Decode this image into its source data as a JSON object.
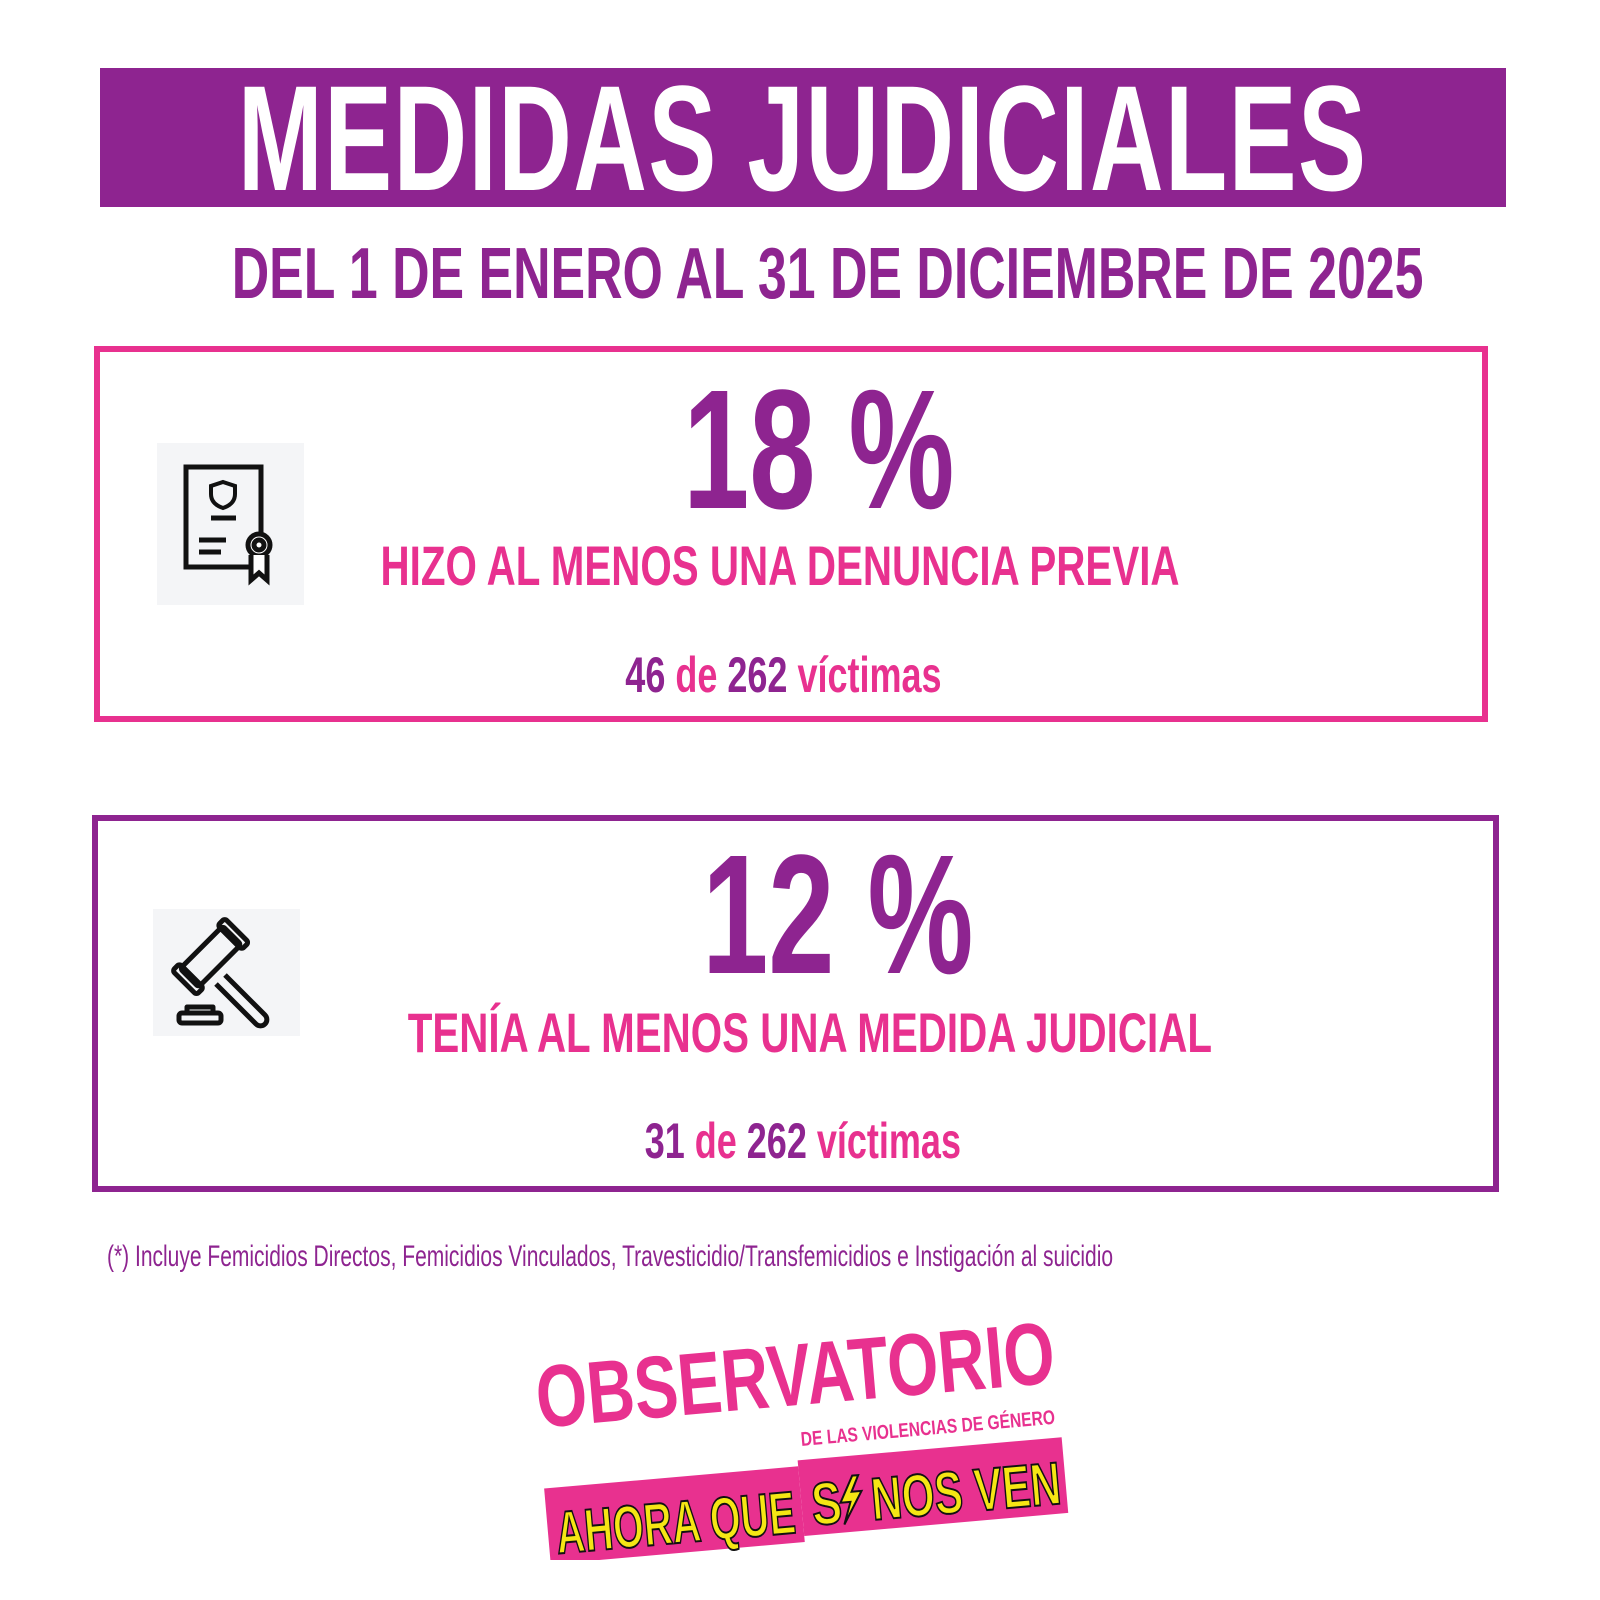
{
  "header": {
    "title": "MEDIDAS JUDICIALES",
    "subtitle": "DEL 1 DE ENERO AL 31 DE DICIEMBRE DE 2025"
  },
  "stats": [
    {
      "icon": "certificate-icon",
      "percent": "18 %",
      "label": "HIZO AL MENOS UNA DENUNCIA PREVIA",
      "count": "46",
      "of": "de",
      "total": "262",
      "unit": "víctimas"
    },
    {
      "icon": "gavel-icon",
      "percent": "12 %",
      "label": "TENÍA AL MENOS UNA MEDIDA JUDICIAL",
      "count": "31",
      "of": "de",
      "total": "262",
      "unit": "víctimas"
    }
  ],
  "footnote": "(*) Incluye Femicidios Directos, Femicidios Vinculados,  Travesticidio/Transfemicidios e Instigación al suicidio",
  "logo": {
    "line1": "OBSERVATORIO",
    "line2": "DE LAS VIOLENCIAS DE GÉNERO",
    "line3a": "AHORA QUE",
    "line3b": "S",
    "line3c": "NOS VEN"
  },
  "colors": {
    "purple": "#8e2490",
    "pink": "#e8318f",
    "yellow": "#f5e614"
  }
}
